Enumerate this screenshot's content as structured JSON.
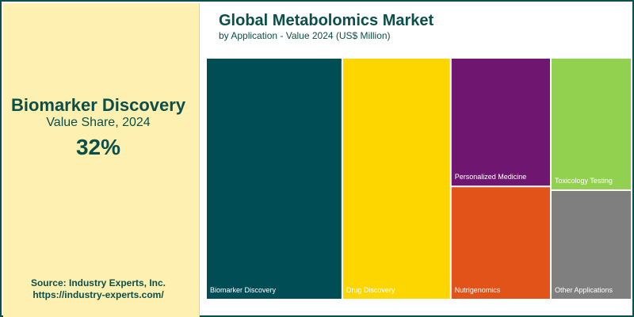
{
  "side_panel": {
    "segment": "Biomarker Discovery",
    "metric": "Value Share, 2024",
    "value": "32%"
  },
  "source": {
    "line1": "Source: Industry Experts, Inc.",
    "line2": "https://industry-experts.com/"
  },
  "colors": {
    "accent": "#0b4f4a",
    "side_background": "#fdf0b0"
  },
  "chart_data": {
    "type": "treemap",
    "title": "Global Metabolomics Market",
    "subtitle": "by Application - Value 2024 (US$ Million)",
    "nodes": [
      {
        "label": "Biomarker Discovery",
        "share": 0.32,
        "color": "#004d56"
      },
      {
        "label": "Drug Discovery",
        "share": 0.255,
        "color": "#fdd600"
      },
      {
        "label": "Personalized Medicine",
        "share": 0.125,
        "color": "#6f1670"
      },
      {
        "label": "Nutrigenomics",
        "share": 0.11,
        "color": "#e2531a"
      },
      {
        "label": "Toxicology Testing",
        "share": 0.104,
        "color": "#92d050"
      },
      {
        "label": "Other Applications",
        "share": 0.086,
        "color": "#7f7f7f"
      }
    ]
  }
}
